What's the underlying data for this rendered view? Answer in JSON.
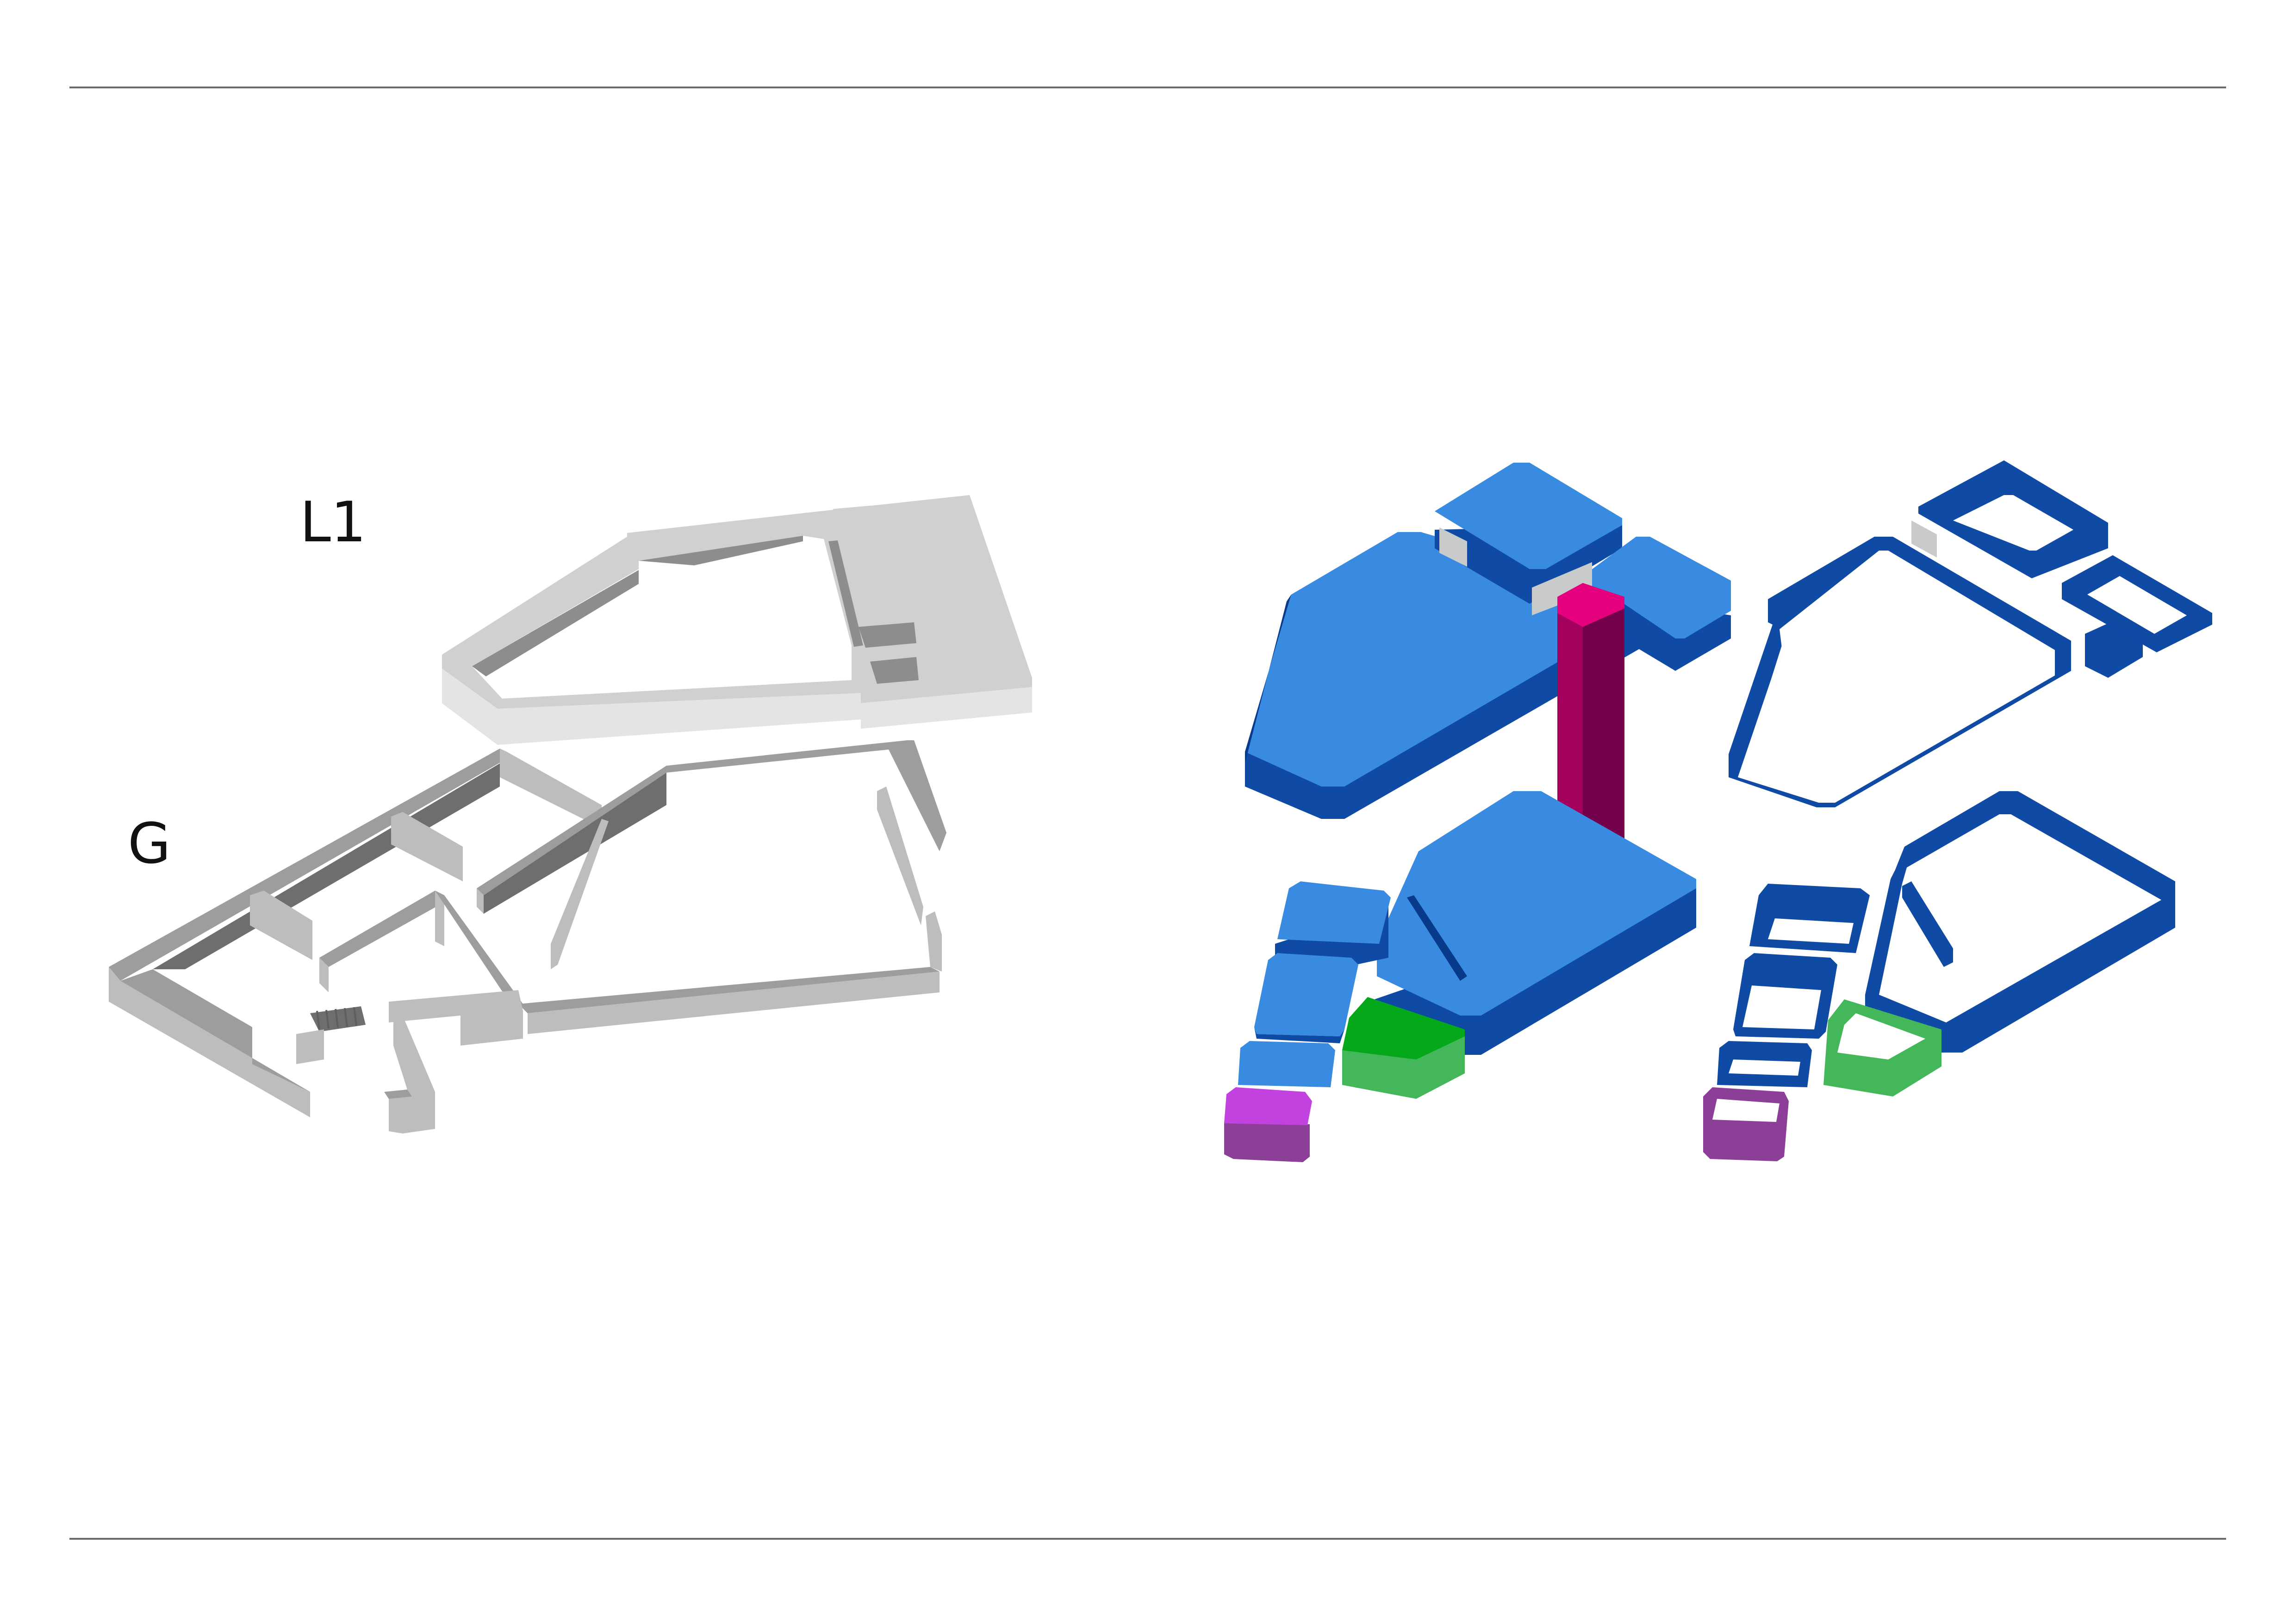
{
  "labels": {
    "level_1": "L1",
    "ground": "G"
  },
  "colors": {
    "background": "#ffffff",
    "rule": "#6a6a6a",
    "label": "#111111",
    "wall_light_top": "#cfd0d1",
    "wall_light_side": "#e3e4e5",
    "wall_light_shadow": "#8d8d8d",
    "wall_dark_top": "#9d9d9d",
    "wall_dark_side": "#bdbdbd",
    "wall_dark_shadow": "#6e6e6e",
    "volume_blue_top": "#388be0",
    "volume_blue_side": "#0f4aa5",
    "volume_blue_dark": "#083a8a",
    "core_magenta_top": "#e5007e",
    "core_magenta_side": "#a3005e",
    "core_magenta_dark": "#73004a",
    "volume_green_top": "#06a81b",
    "volume_green_side": "#43b75a",
    "volume_purple_top": "#c242e0",
    "volume_purple_side": "#8b3f97",
    "connector_grey": "#c9caca"
  },
  "diagrams": [
    {
      "name": "grey-wall-model",
      "levels": [
        "L1",
        "G"
      ]
    },
    {
      "name": "colored-solid-volumes"
    },
    {
      "name": "colored-outline-volumes"
    }
  ]
}
